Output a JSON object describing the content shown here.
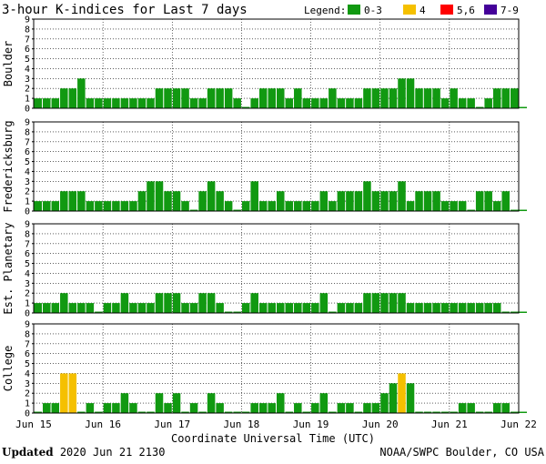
{
  "title": "3-hour K-indices for Last 7 days",
  "legend": {
    "label": "Legend:",
    "items": [
      {
        "name": "0-3",
        "color": "#119911"
      },
      {
        "name": "4",
        "color": "#f5c000"
      },
      {
        "name": "5,6",
        "color": "#ff0000"
      },
      {
        "name": "7-9",
        "color": "#440099"
      }
    ]
  },
  "footer": {
    "updated_label": "Updated",
    "updated_value": "2020 Jun 21 2130",
    "source": "NOAA/SWPC Boulder, CO USA"
  },
  "chart_data": [
    {
      "type": "bar",
      "ylabel": "Boulder",
      "ylim": [
        0,
        9
      ],
      "x_tick_labels": [
        "Jun 15",
        "Jun 16",
        "Jun 17",
        "Jun 18",
        "Jun 19",
        "Jun 20",
        "Jun 21",
        "Jun 22"
      ],
      "xlabel": "Coordinate Universal Time (UTC)",
      "values": [
        1,
        1,
        1,
        2,
        2,
        3,
        1,
        1,
        1,
        1,
        1,
        1,
        1,
        1,
        2,
        2,
        2,
        2,
        1,
        1,
        2,
        2,
        2,
        1,
        0,
        1,
        2,
        2,
        2,
        1,
        2,
        1,
        1,
        1,
        2,
        1,
        1,
        1,
        2,
        2,
        2,
        2,
        3,
        3,
        2,
        2,
        2,
        1,
        2,
        1,
        1,
        0,
        1,
        2,
        2,
        2,
        0
      ]
    },
    {
      "type": "bar",
      "ylabel": "Fredericksburg",
      "ylim": [
        0,
        9
      ],
      "values": [
        1,
        1,
        1,
        2,
        2,
        2,
        1,
        1,
        1,
        1,
        1,
        1,
        2,
        3,
        3,
        2,
        2,
        1,
        0,
        2,
        3,
        2,
        1,
        0,
        1,
        3,
        1,
        1,
        2,
        1,
        1,
        1,
        1,
        2,
        1,
        2,
        2,
        2,
        3,
        2,
        2,
        2,
        3,
        1,
        2,
        2,
        2,
        1,
        1,
        1,
        0,
        2,
        2,
        1,
        2,
        0,
        0
      ]
    },
    {
      "type": "bar",
      "ylabel": "Est. Planetary",
      "ylim": [
        0,
        9
      ],
      "values": [
        1,
        1,
        1,
        2,
        1,
        1,
        1,
        0,
        1,
        1,
        2,
        1,
        1,
        1,
        2,
        2,
        2,
        1,
        1,
        2,
        2,
        1,
        0,
        0,
        1,
        2,
        1,
        1,
        1,
        1,
        1,
        1,
        1,
        2,
        0,
        1,
        1,
        1,
        2,
        2,
        2,
        2,
        2,
        1,
        1,
        1,
        1,
        1,
        1,
        1,
        1,
        1,
        1,
        1,
        0,
        0,
        0
      ]
    },
    {
      "type": "bar",
      "ylabel": "College",
      "ylim": [
        0,
        9
      ],
      "values": [
        0,
        1,
        1,
        4,
        4,
        0,
        1,
        0,
        1,
        1,
        2,
        1,
        0,
        0,
        2,
        1,
        2,
        0,
        1,
        0,
        2,
        1,
        0,
        0,
        0,
        1,
        1,
        1,
        2,
        0,
        1,
        0,
        1,
        2,
        0,
        1,
        1,
        0,
        1,
        1,
        2,
        3,
        4,
        3,
        0,
        0,
        0,
        0,
        0,
        1,
        1,
        0,
        0,
        1,
        1,
        0,
        0
      ]
    }
  ]
}
